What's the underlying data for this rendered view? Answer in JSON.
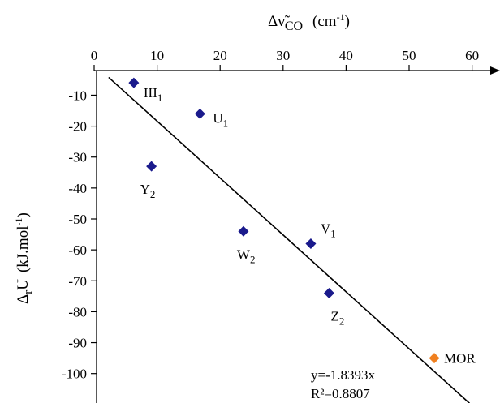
{
  "chart_data": {
    "type": "scatter",
    "title": "",
    "xlabel": {
      "prefix": "Δ",
      "symbol": "ν̃",
      "subscript": "CO",
      "unit_open": "(cm",
      "unit_sup": "-1",
      "unit_close": ")"
    },
    "ylabel": {
      "prefix": "Δ",
      "subscript": "r",
      "symbol": "U",
      "unit_open": "(kJ.mol",
      "unit_sup": "-1",
      "unit_close": ")"
    },
    "x_axis_position": "top",
    "xlim": [
      0,
      63
    ],
    "ylim": [
      -112,
      0
    ],
    "x_ticks": [
      0,
      10,
      20,
      30,
      40,
      50,
      60
    ],
    "y_ticks": [
      -10,
      -20,
      -30,
      -40,
      -50,
      -60,
      -70,
      -80,
      -90,
      -100
    ],
    "grid": false,
    "legend": "none",
    "series": [
      {
        "color": "#1a1a8c",
        "marker": "diamond",
        "points": [
          {
            "label": "III",
            "sub": "1",
            "x": 6.3,
            "y": -6
          },
          {
            "label": "U",
            "sub": "1",
            "x": 16.8,
            "y": -16
          },
          {
            "label": "Y",
            "sub": "2",
            "x": 9.1,
            "y": -33
          },
          {
            "label": "W",
            "sub": "2",
            "x": 23.7,
            "y": -54
          },
          {
            "label": "V",
            "sub": "1",
            "x": 34.4,
            "y": -58
          },
          {
            "label": "Z",
            "sub": "2",
            "x": 37.3,
            "y": -74
          }
        ]
      },
      {
        "color": "#f08020",
        "marker": "diamond",
        "points": [
          {
            "label": "MOR",
            "sub": "",
            "x": 54.0,
            "y": -95
          }
        ]
      }
    ],
    "trendline": {
      "slope": -1.8393,
      "x_start": 2.3,
      "x_end": 59.6,
      "equation": "y=-1.8393x",
      "r2": "R²=0.8807"
    }
  }
}
